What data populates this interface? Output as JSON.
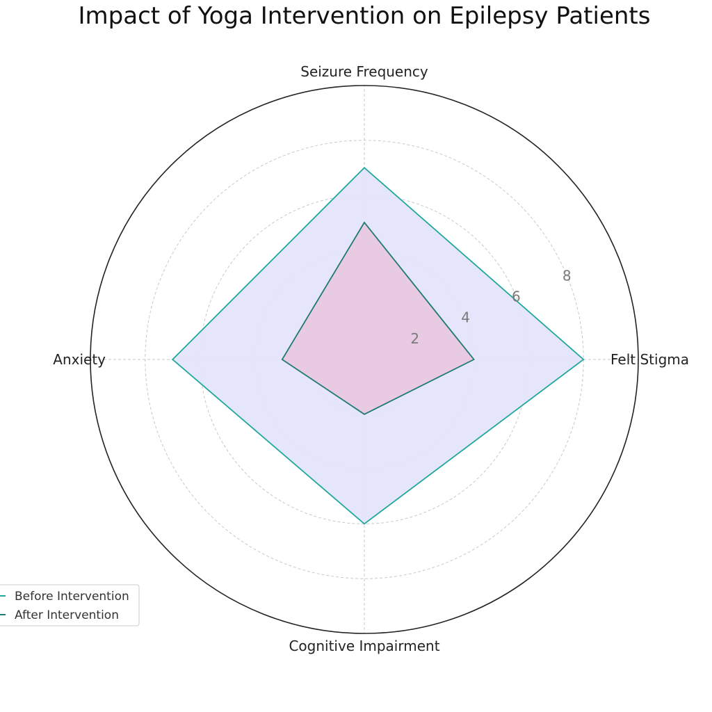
{
  "chart_data": {
    "type": "radar",
    "title": "Impact of Yoga Intervention on Epilepsy Patients",
    "categories": [
      "Felt Stigma",
      "Seizure Frequency",
      "Anxiety",
      "Cognitive Impairment"
    ],
    "series": [
      {
        "name": "Before Intervention",
        "values": [
          8,
          7,
          7,
          6
        ],
        "line_color": "#20a89a",
        "fill_color": "#e4e4fb"
      },
      {
        "name": "After Intervention",
        "values": [
          4,
          5,
          3,
          2
        ],
        "line_color": "#1f7a70",
        "fill_color": "#e8c8e2"
      }
    ],
    "r_ticks": [
      2,
      4,
      6,
      8
    ],
    "r_max": 10,
    "r_tick_labels": [
      "2",
      "4",
      "6",
      "8"
    ],
    "grid": true,
    "legend_position": "lower-left"
  }
}
